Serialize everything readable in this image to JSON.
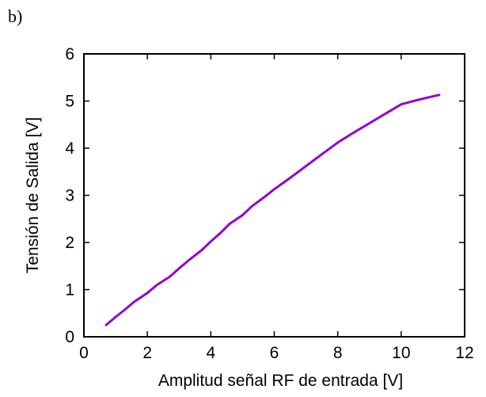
{
  "panel_label": "b)",
  "chart_data": {
    "type": "line",
    "title": "",
    "xlabel": "Amplitud señal RF de entrada [V]",
    "ylabel": "Tensión de Salida  [V]",
    "xlim": [
      0,
      12
    ],
    "ylim": [
      0,
      6
    ],
    "xticks": [
      0,
      2,
      4,
      6,
      8,
      10,
      12
    ],
    "yticks": [
      0,
      1,
      2,
      3,
      4,
      5,
      6
    ],
    "grid": false,
    "color": "#9400d3",
    "series": [
      {
        "x": [
          0.7,
          1.0,
          1.3,
          1.6,
          2.0,
          2.3,
          2.7,
          3.0,
          3.3,
          3.7,
          4.0,
          4.3,
          4.6,
          5.0,
          5.3,
          5.7,
          6.0,
          6.5,
          7.0,
          7.5,
          8.0,
          8.5,
          9.0,
          9.5,
          10.0,
          10.5,
          11.0,
          11.2
        ],
        "y": [
          0.25,
          0.42,
          0.58,
          0.75,
          0.93,
          1.1,
          1.27,
          1.45,
          1.62,
          1.83,
          2.02,
          2.2,
          2.4,
          2.58,
          2.77,
          2.97,
          3.13,
          3.37,
          3.62,
          3.87,
          4.12,
          4.33,
          4.53,
          4.73,
          4.93,
          5.02,
          5.1,
          5.13
        ]
      }
    ]
  }
}
